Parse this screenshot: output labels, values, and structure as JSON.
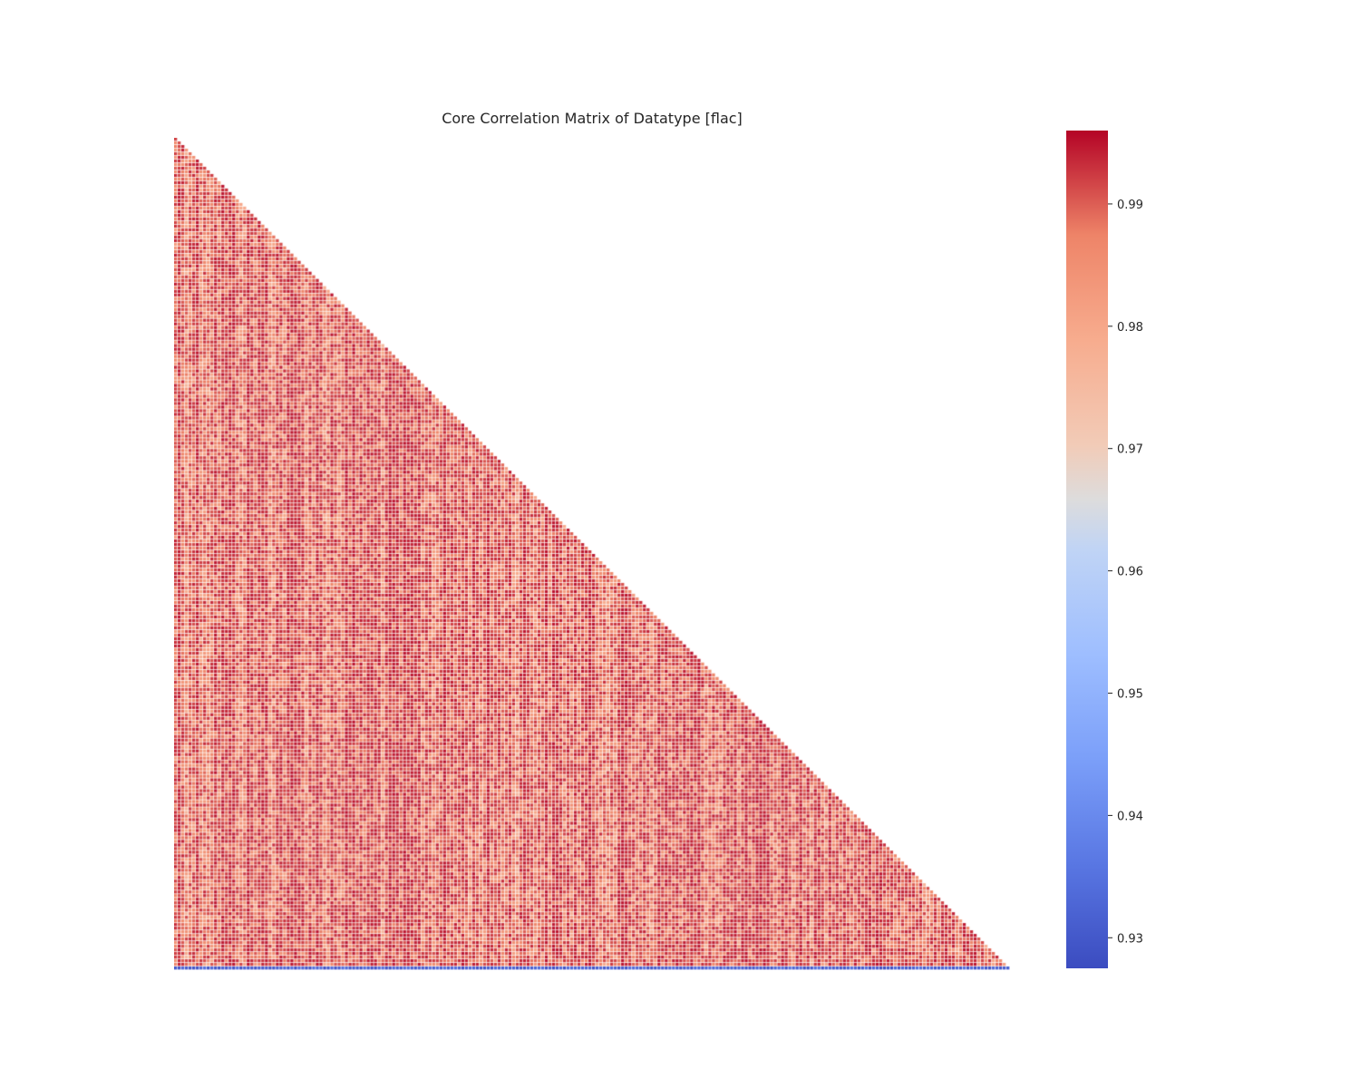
{
  "chart_data": {
    "type": "heatmap",
    "title": "Core Correlation Matrix of Datatype [flac]",
    "xlabel": "",
    "ylabel": "",
    "matrix_size": 230,
    "mask": "upper-triangle",
    "typical_value_range": [
      0.975,
      0.995
    ],
    "last_row_value_range": [
      0.928,
      0.935
    ],
    "colormap": "coolwarm",
    "colorbar": {
      "vmin": 0.9275,
      "vmax": 0.996,
      "ticks": [
        {
          "value": 0.93,
          "label": "0.93"
        },
        {
          "value": 0.94,
          "label": "0.94"
        },
        {
          "value": 0.95,
          "label": "0.95"
        },
        {
          "value": 0.96,
          "label": "0.96"
        },
        {
          "value": 0.97,
          "label": "0.97"
        },
        {
          "value": 0.98,
          "label": "0.98"
        },
        {
          "value": 0.99,
          "label": "0.99"
        }
      ]
    },
    "gridlines": "white cell borders",
    "axis_tick_labels": "none"
  }
}
